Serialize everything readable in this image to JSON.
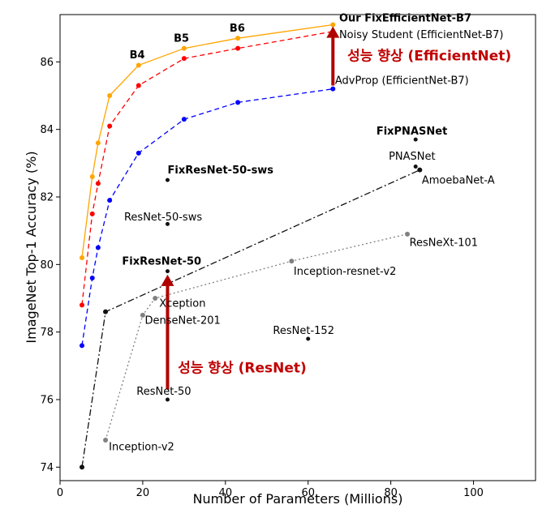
{
  "chart_data": {
    "type": "line",
    "xlabel": "Number of Parameters (Millions)",
    "ylabel": "ImageNet Top-1 Accuracy (%)",
    "xlim": [
      0,
      115
    ],
    "ylim": [
      73.6,
      87.4
    ],
    "xticks": [
      0,
      20,
      40,
      60,
      80,
      100
    ],
    "yticks": [
      74,
      76,
      78,
      80,
      82,
      84,
      86
    ],
    "grid": false,
    "series": [
      {
        "key": "fix-efficientnet",
        "color": "#ffa500",
        "dash": "",
        "points": [
          [
            5.3,
            80.2
          ],
          [
            7.8,
            82.6
          ],
          [
            9.2,
            83.6
          ],
          [
            12,
            85.0
          ],
          [
            19,
            85.9
          ],
          [
            30,
            86.4
          ],
          [
            43,
            86.7
          ],
          [
            66,
            87.1
          ]
        ]
      },
      {
        "key": "noisy-student",
        "color": "#ff0000",
        "dash": "6,4",
        "points": [
          [
            5.3,
            78.8
          ],
          [
            7.8,
            81.5
          ],
          [
            9.2,
            82.4
          ],
          [
            12,
            84.1
          ],
          [
            19,
            85.3
          ],
          [
            30,
            86.1
          ],
          [
            43,
            86.4
          ],
          [
            66,
            86.9
          ]
        ]
      },
      {
        "key": "advprop",
        "color": "#0000ff",
        "dash": "6,4",
        "points": [
          [
            5.3,
            77.6
          ],
          [
            7.8,
            79.6
          ],
          [
            9.2,
            80.5
          ],
          [
            12,
            81.9
          ],
          [
            19,
            83.3
          ],
          [
            30,
            84.3
          ],
          [
            43,
            84.8
          ],
          [
            66,
            85.2
          ]
        ]
      },
      {
        "key": "nas-family",
        "color": "#111111",
        "dash": "8,3,2,3",
        "points": [
          [
            5.3,
            74.0
          ],
          [
            11,
            78.6
          ],
          [
            87,
            82.8
          ]
        ]
      },
      {
        "key": "inception-family",
        "color": "#808080",
        "dash": "2,3",
        "points": [
          [
            11,
            74.8
          ],
          [
            20,
            78.5
          ],
          [
            23,
            79.0
          ],
          [
            56,
            80.1
          ],
          [
            84,
            80.9
          ]
        ]
      }
    ],
    "singles": [
      {
        "x": 26,
        "y": 76.0,
        "color": "#111111"
      },
      {
        "x": 26,
        "y": 79.8,
        "color": "#111111"
      },
      {
        "x": 26,
        "y": 81.2,
        "color": "#111111"
      },
      {
        "x": 26,
        "y": 82.5,
        "color": "#111111"
      },
      {
        "x": 60,
        "y": 77.8,
        "color": "#111111"
      },
      {
        "x": 86,
        "y": 82.9,
        "color": "#111111"
      },
      {
        "x": 86,
        "y": 83.7,
        "color": "#111111"
      }
    ],
    "annotations": [
      {
        "key": "b4",
        "text": "B4",
        "x": 16.8,
        "y": 86.1,
        "bold": true
      },
      {
        "key": "b5",
        "text": "B5",
        "x": 27.5,
        "y": 86.6,
        "bold": true
      },
      {
        "key": "b6",
        "text": "B6",
        "x": 41.0,
        "y": 86.9,
        "bold": true
      },
      {
        "key": "our-fixefficientnet-b7",
        "text": "Our FixEfficientNet-B7",
        "x": 67.5,
        "y": 87.2,
        "bold": true
      },
      {
        "key": "noisy-student-label",
        "text": "Noisy Student (EfficientNet-B7)",
        "x": 67.5,
        "y": 86.7,
        "bold": false
      },
      {
        "key": "advprop-label",
        "text": "AdvProp (EfficientNet-B7)",
        "x": 66.5,
        "y": 85.35,
        "bold": false
      },
      {
        "key": "fixpnasnet",
        "text": "FixPNASNet",
        "x": 76.5,
        "y": 83.85,
        "bold": true
      },
      {
        "key": "pnasnet",
        "text": "PNASNet",
        "x": 79.5,
        "y": 83.1,
        "bold": false
      },
      {
        "key": "amoebanet-a",
        "text": "AmoebaNet-A",
        "x": 87.5,
        "y": 82.4,
        "bold": false
      },
      {
        "key": "fixresnet-50-sws",
        "text": "FixResNet-50-sws",
        "x": 26.0,
        "y": 82.7,
        "bold": true
      },
      {
        "key": "resnet-50-sws",
        "text": "ResNet-50-sws",
        "x": 15.5,
        "y": 81.3,
        "bold": false
      },
      {
        "key": "resnext-101",
        "text": "ResNeXt-101",
        "x": 84.5,
        "y": 80.55,
        "bold": false
      },
      {
        "key": "fixresnet-50",
        "text": "FixResNet-50",
        "x": 15.0,
        "y": 80.0,
        "bold": true
      },
      {
        "key": "inception-resnet-v2",
        "text": "Inception-resnet-v2",
        "x": 56.5,
        "y": 79.7,
        "bold": false
      },
      {
        "key": "xception",
        "text": "Xception",
        "x": 24.0,
        "y": 78.75,
        "bold": false
      },
      {
        "key": "densenet-201",
        "text": "DenseNet-201",
        "x": 20.5,
        "y": 78.25,
        "bold": false
      },
      {
        "key": "resnet-152",
        "text": "ResNet-152",
        "x": 51.5,
        "y": 77.95,
        "bold": false
      },
      {
        "key": "resnet-50",
        "text": "ResNet-50",
        "x": 18.5,
        "y": 76.15,
        "bold": false
      },
      {
        "key": "inception-v2",
        "text": "Inception-v2",
        "x": 11.8,
        "y": 74.5,
        "bold": false
      }
    ],
    "callouts": [
      {
        "key": "efficientnet-gain",
        "text": "성능 향상 (EfficientNet)",
        "x": 69.5,
        "y": 86.05,
        "color": "#c00000"
      },
      {
        "key": "resnet-gain",
        "text": "성능 향상 (ResNet)",
        "x": 28.5,
        "y": 76.8,
        "color": "#c00000"
      }
    ],
    "arrows": [
      {
        "key": "efficientnet-arrow",
        "x": 66,
        "y_from": 85.3,
        "y_to": 87.05,
        "color": "#b00000"
      },
      {
        "key": "resnet-arrow",
        "x": 26,
        "y_from": 76.3,
        "y_to": 79.7,
        "color": "#b00000"
      }
    ]
  }
}
